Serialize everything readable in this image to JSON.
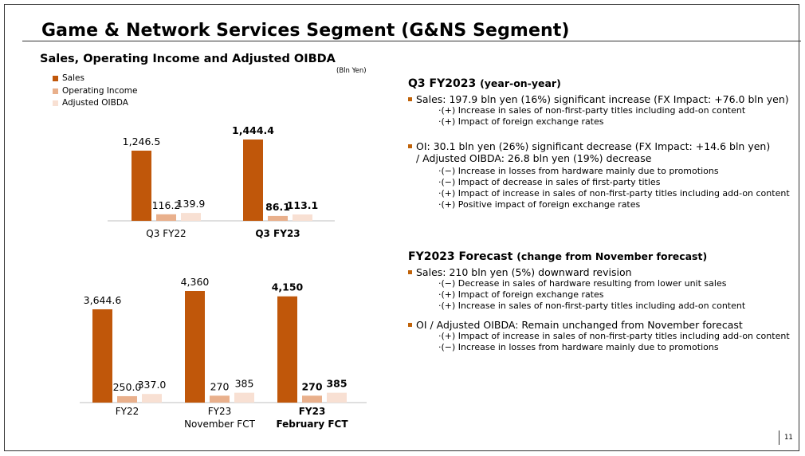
{
  "slide": {
    "title": "Game & Network Services Segment (G&NS Segment)",
    "subtitle": "Sales, Operating Income and Adjusted OIBDA",
    "unit": "(Bln Yen)",
    "page_number": "11"
  },
  "legend": [
    {
      "label": "Sales",
      "color": "#c0570a"
    },
    {
      "label": "Operating Income",
      "color": "#e9b08c"
    },
    {
      "label": "Adjusted OIBDA",
      "color": "#f8e0d3"
    }
  ],
  "chart_data": [
    {
      "type": "bar",
      "categories": [
        "Q3 FY22",
        "Q3 FY23"
      ],
      "series": [
        {
          "name": "Sales",
          "values": [
            1246.5,
            1444.4
          ]
        },
        {
          "name": "Operating Income",
          "values": [
            116.2,
            86.1
          ]
        },
        {
          "name": "Adjusted OIBDA",
          "values": [
            139.9,
            113.1
          ]
        }
      ],
      "labels": [
        [
          "1,246.5",
          "116.2",
          "139.9"
        ],
        [
          "1,444.4",
          "86.1",
          "113.1"
        ]
      ],
      "bold_groups": [
        false,
        true
      ]
    },
    {
      "type": "bar",
      "categories": [
        "FY22",
        "FY23 November FCT",
        "FY23 February FCT"
      ],
      "category_lines": [
        [
          "FY22"
        ],
        [
          "FY23",
          "November FCT"
        ],
        [
          "FY23",
          "February FCT"
        ]
      ],
      "series": [
        {
          "name": "Sales",
          "values": [
            3644.6,
            4360,
            4150
          ]
        },
        {
          "name": "Operating Income",
          "values": [
            250.0,
            270,
            270
          ]
        },
        {
          "name": "Adjusted OIBDA",
          "values": [
            337.0,
            385,
            385
          ]
        }
      ],
      "labels": [
        [
          "3,644.6",
          "250.0",
          "337.0"
        ],
        [
          "4,360",
          "270",
          "385"
        ],
        [
          "4,150",
          "270",
          "385"
        ]
      ],
      "bold_groups": [
        false,
        false,
        true
      ]
    }
  ],
  "q3": {
    "title": "Q3 FY2023",
    "title_note": "(year-on-year)",
    "sales_line": "Sales: 197.9 bln yen (16%) significant increase (FX Impact: +76.0 bln yen)",
    "sales_subs": [
      "·(+) Increase in sales of non-first-party titles including add-on content",
      "·(+) Impact of foreign exchange rates"
    ],
    "oi_line1": "OI:  30.1 bln yen (26%) significant decrease  (FX Impact: +14.6 bln yen)",
    "oi_line2": "/ Adjusted OIBDA: 26.8 bln yen (19%) decrease",
    "oi_subs": [
      "·(−) Increase in losses from hardware mainly due to promotions",
      "·(−) Impact of decrease in sales of first-party titles",
      "·(+) Impact of increase in sales of non-first-party titles including add-on content",
      "·(+) Positive impact of foreign exchange rates"
    ]
  },
  "forecast": {
    "title": "FY2023 Forecast",
    "title_note": "(change from November forecast)",
    "sales_line": "Sales: 210 bln yen (5%) downward revision",
    "sales_subs": [
      "·(−) Decrease in sales of hardware resulting from lower unit sales",
      "·(+) Impact of foreign exchange rates",
      "·(+) Increase in sales of non-first-party titles including add-on content"
    ],
    "oi_line": "OI / Adjusted OIBDA: Remain unchanged from November forecast",
    "oi_subs": [
      "·(+) Impact of increase in sales of non-first-party titles including add-on content",
      "·(−) Increase in losses from hardware mainly due to promotions"
    ]
  }
}
